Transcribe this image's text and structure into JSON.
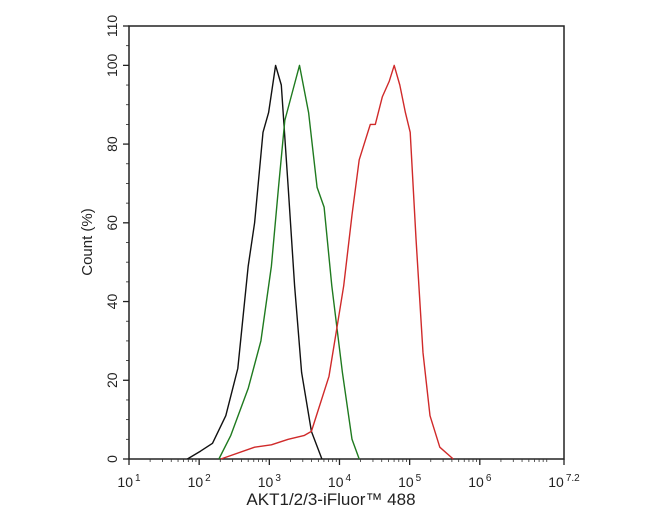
{
  "chart_data": {
    "type": "line",
    "title": "",
    "xlabel": "AKT1/2/3-iFluor™ 488",
    "ylabel": "Count  (%)",
    "x_scale": "log",
    "xlim": [
      10,
      15848932
    ],
    "ylim": [
      0,
      110
    ],
    "x_ticks": [
      {
        "base": "10",
        "exp": "1",
        "value": 10
      },
      {
        "base": "10",
        "exp": "2",
        "value": 100
      },
      {
        "base": "10",
        "exp": "3",
        "value": 1000
      },
      {
        "base": "10",
        "exp": "4",
        "value": 10000
      },
      {
        "base": "10",
        "exp": "5",
        "value": 100000
      },
      {
        "base": "10",
        "exp": "6",
        "value": 1000000
      },
      {
        "base": "10",
        "exp": "7.2",
        "value": 15848932
      }
    ],
    "y_ticks": [
      "0",
      "20",
      "40",
      "60",
      "80",
      "100",
      "110"
    ],
    "grid": false,
    "legend": "none",
    "series": [
      {
        "color": "#111111",
        "x": [
          68,
          105,
          155,
          240,
          355,
          500,
          617,
          813,
          977,
          1230,
          1480,
          1860,
          2290,
          2880,
          3980,
          5620
        ],
        "y": [
          0,
          2,
          4,
          11,
          23,
          49,
          60,
          83,
          88,
          100,
          95,
          69,
          44,
          22,
          7,
          0
        ]
      },
      {
        "color": "#1f7a1f",
        "x": [
          191,
          282,
          501,
          759,
          1070,
          1350,
          1660,
          2190,
          2690,
          3630,
          4790,
          6030,
          7760,
          11000,
          15100,
          19100
        ],
        "y": [
          0,
          6,
          18,
          30,
          49,
          69,
          86,
          94,
          100,
          88,
          69,
          64,
          44,
          22,
          5,
          0
        ]
      },
      {
        "color": "#d02a2a",
        "x": [
          204,
          617,
          1070,
          1860,
          3160,
          3980,
          7080,
          9120,
          11500,
          15100,
          19100,
          27500,
          32400,
          40700,
          51300,
          60300,
          72400,
          87100,
          102000,
          123000,
          155000,
          195000,
          269000,
          417000
        ],
        "y": [
          0,
          3,
          3.6,
          5,
          6,
          7,
          21,
          33,
          44,
          62,
          76,
          85,
          85,
          92,
          96,
          100,
          95,
          88,
          83,
          56,
          27,
          11,
          3,
          0
        ]
      }
    ]
  }
}
